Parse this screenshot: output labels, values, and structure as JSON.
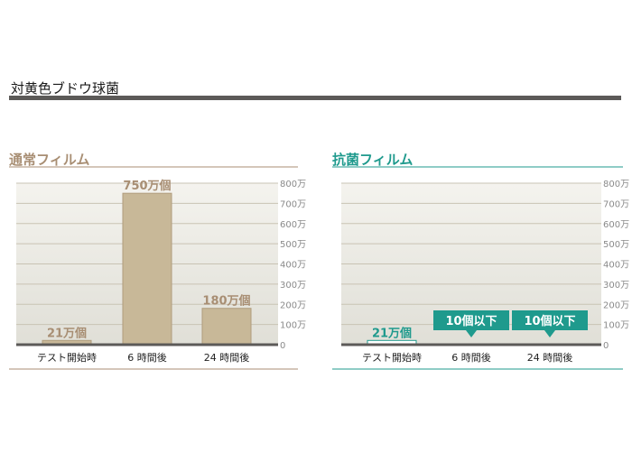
{
  "header": {
    "title": "対黄色ブドウ球菌"
  },
  "colors": {
    "normal_accent": "#a88e73",
    "normal_bar": "#c8b898",
    "anti_accent": "#1f9a8d",
    "gridline": "#c9c3b4",
    "axis_text": "#8a8a8a",
    "plot_top": "#f4f3ee",
    "plot_bottom": "#e0dfd7"
  },
  "chart_data": [
    {
      "type": "bar",
      "title": "通常フィルム",
      "categories": [
        "テスト開始時",
        "6 時間後",
        "24 時間後"
      ],
      "values": [
        210000,
        7500000,
        1800000
      ],
      "data_labels": [
        "21万個",
        "750万個",
        "180万個"
      ],
      "ylim": [
        0,
        8000000
      ],
      "yticks": [
        0,
        1000000,
        2000000,
        3000000,
        4000000,
        5000000,
        6000000,
        7000000,
        8000000
      ],
      "ytick_labels": [
        "0",
        "100万",
        "200万",
        "300万",
        "400万",
        "500万",
        "600万",
        "700万",
        "800万"
      ],
      "grid": true
    },
    {
      "type": "bar",
      "title": "抗菌フィルム",
      "categories": [
        "テスト開始時",
        "6 時間後",
        "24 時間後"
      ],
      "values": [
        210000,
        10,
        10
      ],
      "data_labels": [
        "21万個",
        "10個以下",
        "10個以下"
      ],
      "ylim": [
        0,
        8000000
      ],
      "yticks": [
        0,
        1000000,
        2000000,
        3000000,
        4000000,
        5000000,
        6000000,
        7000000,
        8000000
      ],
      "ytick_labels": [
        "0",
        "100万",
        "200万",
        "300万",
        "400万",
        "500万",
        "600万",
        "700万",
        "800万"
      ],
      "grid": true
    }
  ]
}
